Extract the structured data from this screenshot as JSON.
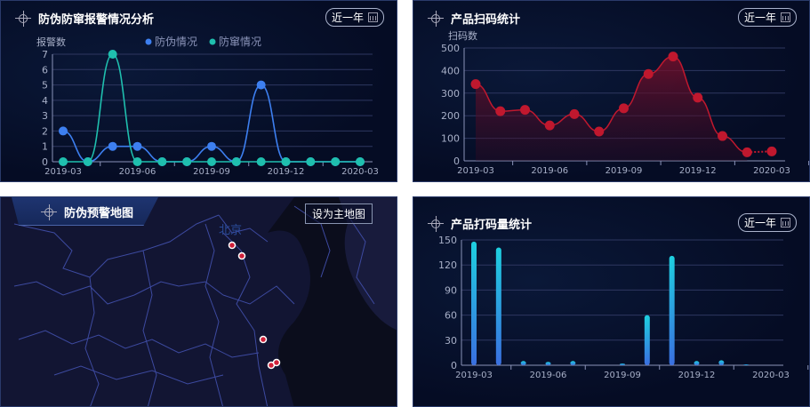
{
  "range_label": "近一年",
  "panels": {
    "alarm": {
      "title": "防伪防窜报警情况分析"
    },
    "scan": {
      "title": "产品扫码统计"
    },
    "map": {
      "title": "防伪预警地图",
      "set_main": "设为主地图",
      "city_label": "北京"
    },
    "print": {
      "title": "产品打码量统计"
    }
  },
  "chart_data": [
    {
      "type": "line",
      "title": "防伪防窜报警情况分析",
      "ylabel": "报警数",
      "ylim": [
        0,
        7
      ],
      "yticks": [
        0,
        1,
        2,
        3,
        4,
        5,
        6,
        7
      ],
      "xticks": [
        "2019-03",
        "2019-06",
        "2019-09",
        "2019-12",
        "2020-03"
      ],
      "x": [
        "2019-03",
        "2019-04",
        "2019-05",
        "2019-06",
        "2019-07",
        "2019-08",
        "2019-09",
        "2019-10",
        "2019-11",
        "2019-12",
        "2020-01",
        "2020-02",
        "2020-03"
      ],
      "series": [
        {
          "name": "防伪情况",
          "color": "#3d7ff0",
          "values": [
            2,
            0,
            1,
            1,
            0,
            0,
            1,
            0,
            5,
            0,
            0,
            0,
            0
          ]
        },
        {
          "name": "防窜情况",
          "color": "#1fbfae",
          "values": [
            0,
            0,
            7,
            0,
            0,
            0,
            0,
            0,
            0,
            0,
            0,
            0,
            0
          ]
        }
      ],
      "legend": "top-center"
    },
    {
      "type": "area",
      "title": "产品扫码统计",
      "ylabel": "扫码数",
      "ylim": [
        0,
        500
      ],
      "yticks": [
        0,
        100,
        200,
        300,
        400,
        500
      ],
      "xticks": [
        "2019-03",
        "2019-06",
        "2019-09",
        "2019-12",
        "2020-03"
      ],
      "x": [
        "2019-03",
        "2019-04",
        "2019-05",
        "2019-06",
        "2019-07",
        "2019-08",
        "2019-09",
        "2019-10",
        "2019-11",
        "2019-12",
        "2020-01",
        "2020-02",
        "2020-03"
      ],
      "series": [
        {
          "name": "扫码数",
          "color": "#c0182e",
          "values": [
            340,
            220,
            226,
            157,
            207,
            130,
            233,
            385,
            462,
            280,
            110,
            38,
            42
          ]
        }
      ]
    },
    {
      "type": "bar",
      "title": "产品打码量统计",
      "ylim": [
        0,
        150
      ],
      "yticks": [
        0,
        30,
        60,
        90,
        120,
        150
      ],
      "xticks": [
        "2019-03",
        "2019-06",
        "2019-09",
        "2019-12",
        "2020-03"
      ],
      "x": [
        "2019-03",
        "2019-04",
        "2019-05",
        "2019-06",
        "2019-07",
        "2019-08",
        "2019-09",
        "2019-10",
        "2019-11",
        "2019-12",
        "2020-01",
        "2020-02",
        "2020-03"
      ],
      "series": [
        {
          "name": "打码量",
          "color": "#1ec8e0",
          "values": [
            148,
            141,
            5,
            4,
            5,
            0,
            2,
            60,
            131,
            5,
            6,
            1,
            0
          ]
        }
      ]
    }
  ]
}
